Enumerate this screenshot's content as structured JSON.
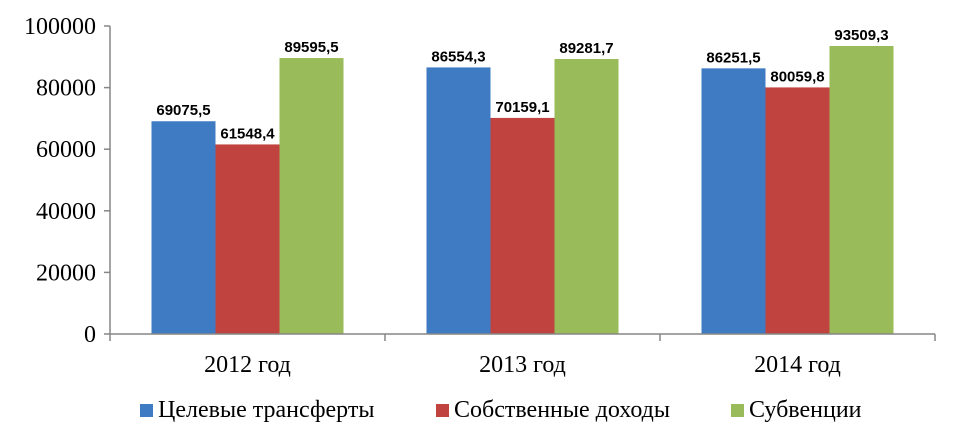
{
  "chart_data": {
    "type": "bar",
    "categories": [
      "2012 год",
      "2013 год",
      "2014 год"
    ],
    "series": [
      {
        "name": "Целевые трансферты",
        "values": [
          69075.5,
          86554.3,
          86251.5
        ],
        "labels": [
          "69075,5",
          "86554,3",
          "86251,5"
        ],
        "color": "#3F7BC2"
      },
      {
        "name": "Собственные доходы",
        "values": [
          61548.4,
          70159.1,
          80059.8
        ],
        "labels": [
          "61548,4",
          "70159,1",
          "80059,8"
        ],
        "color": "#C0433F"
      },
      {
        "name": "Субвенции",
        "values": [
          89595.5,
          89281.7,
          93509.3
        ],
        "labels": [
          "89595,5",
          "89281,7",
          "93509,3"
        ],
        "color": "#9ABB59"
      }
    ],
    "ylim": [
      0,
      100000
    ],
    "yticks": [
      0,
      20000,
      40000,
      60000,
      80000,
      100000
    ],
    "ytick_labels": [
      "0",
      "20000",
      "40000",
      "60000",
      "80000",
      "100000"
    ],
    "grid": false,
    "legend_position": "bottom"
  }
}
